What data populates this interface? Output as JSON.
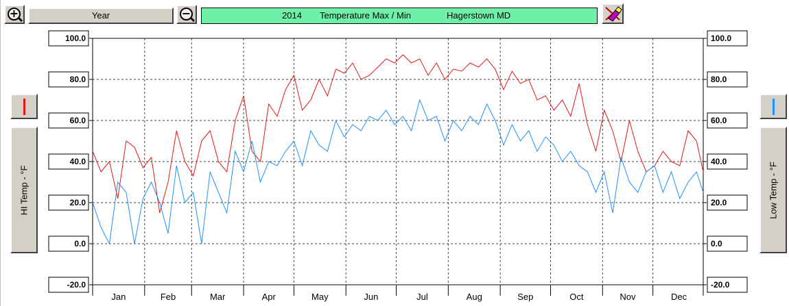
{
  "toolbar": {
    "zoom_in_icon": "zoom-in-magnifier-plus",
    "zoom_out_icon": "zoom-out-magnifier-minus",
    "period_label": "Year",
    "title_year": "2014",
    "title_metric": "Temperature Max / Min",
    "title_station": "Hagerstown MD",
    "title_bg": "#6ff0a8",
    "clear_icon": "eraser-pencil-icon"
  },
  "left_panel": {
    "swatch_color": "#e41818",
    "axis_label": "HI Temp - °F"
  },
  "right_panel": {
    "swatch_color": "#1e90ff",
    "axis_label": "Low Temp - °F"
  },
  "chart_data": {
    "type": "line",
    "ylim": [
      -20,
      100
    ],
    "yticks": [
      "100.0",
      "80.0",
      "60.0",
      "40.0",
      "20.0",
      "0.0",
      "-20.0"
    ],
    "ytick_values": [
      100,
      80,
      60,
      40,
      20,
      0,
      -20
    ],
    "x_months": [
      "Jan",
      "Feb",
      "Mar",
      "Apr",
      "May",
      "Jun",
      "Jul",
      "Aug",
      "Sep",
      "Oct",
      "Nov",
      "Dec"
    ],
    "grid": true,
    "series": [
      {
        "color": "#e41818",
        "x_day": [
          1,
          6,
          11,
          16,
          21,
          26,
          31,
          36,
          41,
          46,
          51,
          56,
          61,
          66,
          71,
          76,
          81,
          86,
          91,
          96,
          101,
          106,
          111,
          116,
          121,
          126,
          131,
          136,
          141,
          146,
          151,
          156,
          161,
          166,
          171,
          176,
          181,
          186,
          191,
          196,
          201,
          206,
          211,
          216,
          221,
          226,
          231,
          236,
          241,
          246,
          251,
          256,
          261,
          266,
          271,
          276,
          281,
          286,
          291,
          296,
          301,
          306,
          311,
          316,
          321,
          326,
          331,
          336,
          341,
          346,
          351,
          356,
          361,
          365
        ],
        "values": [
          45,
          35,
          40,
          22,
          50,
          47,
          37,
          42,
          15,
          30,
          55,
          40,
          33,
          50,
          55,
          40,
          35,
          60,
          72,
          45,
          40,
          68,
          62,
          75,
          82,
          65,
          70,
          80,
          72,
          85,
          83,
          88,
          80,
          82,
          86,
          90,
          88,
          92,
          88,
          90,
          82,
          88,
          80,
          85,
          84,
          88,
          86,
          90,
          85,
          75,
          84,
          78,
          80,
          70,
          72,
          65,
          70,
          62,
          78,
          58,
          45,
          65,
          55,
          40,
          60,
          45,
          35,
          38,
          45,
          40,
          38,
          55,
          50,
          35
        ]
      },
      {
        "color": "#1e90ff",
        "x_day": [
          1,
          6,
          11,
          16,
          21,
          26,
          31,
          36,
          41,
          46,
          51,
          56,
          61,
          66,
          71,
          76,
          81,
          86,
          91,
          96,
          101,
          106,
          111,
          116,
          121,
          126,
          131,
          136,
          141,
          146,
          151,
          156,
          161,
          166,
          171,
          176,
          181,
          186,
          191,
          196,
          201,
          206,
          211,
          216,
          221,
          226,
          231,
          236,
          241,
          246,
          251,
          256,
          261,
          266,
          271,
          276,
          281,
          286,
          291,
          296,
          301,
          306,
          311,
          316,
          321,
          326,
          331,
          336,
          341,
          346,
          351,
          356,
          361,
          365
        ],
        "values": [
          20,
          8,
          0,
          30,
          25,
          0,
          22,
          30,
          20,
          5,
          38,
          20,
          25,
          0,
          35,
          25,
          15,
          45,
          35,
          50,
          30,
          40,
          38,
          45,
          50,
          38,
          55,
          48,
          45,
          60,
          52,
          58,
          55,
          62,
          60,
          65,
          58,
          62,
          55,
          70,
          60,
          62,
          50,
          60,
          55,
          62,
          58,
          68,
          60,
          48,
          58,
          50,
          55,
          45,
          52,
          48,
          40,
          45,
          38,
          35,
          25,
          35,
          15,
          42,
          30,
          25,
          35,
          38,
          25,
          35,
          22,
          30,
          35,
          25
        ]
      }
    ]
  }
}
